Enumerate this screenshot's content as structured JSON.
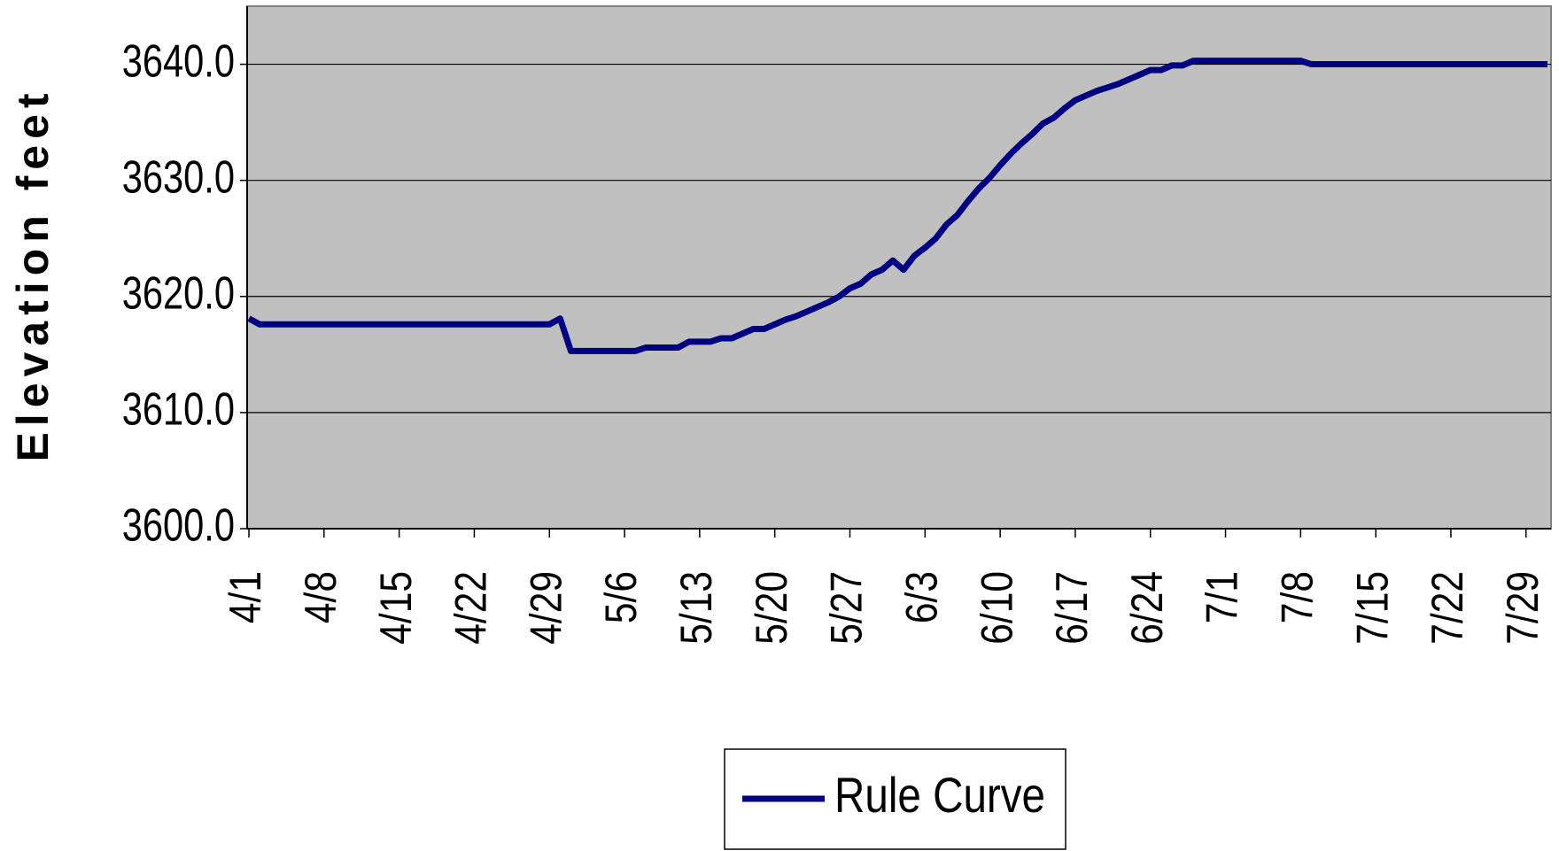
{
  "chart_data": {
    "type": "line",
    "y_label": "Elevation feet",
    "categories": [
      "4/1",
      null,
      null,
      null,
      null,
      null,
      null,
      "4/8",
      null,
      null,
      null,
      null,
      null,
      null,
      "4/15",
      null,
      null,
      null,
      null,
      null,
      null,
      "4/22",
      null,
      null,
      null,
      null,
      null,
      null,
      "4/29",
      null,
      null,
      null,
      null,
      null,
      null,
      "5/6",
      null,
      null,
      null,
      null,
      null,
      null,
      "5/13",
      null,
      null,
      null,
      null,
      null,
      null,
      "5/20",
      null,
      null,
      null,
      null,
      null,
      null,
      "5/27",
      null,
      null,
      null,
      null,
      null,
      null,
      "6/3",
      null,
      null,
      null,
      null,
      null,
      null,
      "6/10",
      null,
      null,
      null,
      null,
      null,
      null,
      "6/17",
      null,
      null,
      null,
      null,
      null,
      null,
      "6/24",
      null,
      null,
      null,
      null,
      null,
      null,
      "7/1",
      null,
      null,
      null,
      null,
      null,
      null,
      "7/8",
      null,
      null,
      null,
      null,
      null,
      null,
      "7/15",
      null,
      null,
      null,
      null,
      null,
      null,
      "7/22",
      null,
      null,
      null,
      null,
      null,
      null,
      "7/29",
      null,
      null
    ],
    "series": [
      {
        "name": "Rule Curve",
        "color": "#000080",
        "values": [
          3618.1,
          3617.6,
          3617.6,
          3617.6,
          3617.6,
          3617.6,
          3617.6,
          3617.6,
          3617.6,
          3617.6,
          3617.6,
          3617.6,
          3617.6,
          3617.6,
          3617.6,
          3617.6,
          3617.6,
          3617.6,
          3617.6,
          3617.6,
          3617.6,
          3617.6,
          3617.6,
          3617.6,
          3617.6,
          3617.6,
          3617.6,
          3617.6,
          3617.6,
          3618.1,
          3615.3,
          3615.3,
          3615.3,
          3615.3,
          3615.3,
          3615.3,
          3615.3,
          3615.6,
          3615.6,
          3615.6,
          3615.6,
          3616.1,
          3616.1,
          3616.1,
          3616.4,
          3616.4,
          3616.8,
          3617.2,
          3617.2,
          3617.6,
          3618.0,
          3618.3,
          3618.7,
          3619.1,
          3619.5,
          3620.0,
          3620.7,
          3621.1,
          3621.9,
          3622.3,
          3623.1,
          3622.3,
          3623.5,
          3624.2,
          3625.0,
          3626.2,
          3627.0,
          3628.2,
          3629.3,
          3630.2,
          3631.3,
          3632.3,
          3633.2,
          3634.0,
          3634.9,
          3635.4,
          3636.2,
          3636.9,
          3637.3,
          3637.7,
          3638.0,
          3638.3,
          3638.7,
          3639.1,
          3639.5,
          3639.5,
          3639.9,
          3639.9,
          3640.3,
          3640.3,
          3640.3,
          3640.3,
          3640.3,
          3640.3,
          3640.3,
          3640.3,
          3640.3,
          3640.3,
          3640.3,
          3640.0,
          3640.0,
          3640.0,
          3640.0,
          3640.0,
          3640.0,
          3640.0,
          3640.0,
          3640.0,
          3640.0,
          3640.0,
          3640.0,
          3640.0,
          3640.0,
          3640.0,
          3640.0,
          3640.0,
          3640.0,
          3640.0,
          3640.0,
          3640.0,
          3640.0,
          3640.0
        ]
      }
    ],
    "ylim": [
      3600,
      3645
    ],
    "yticks": [
      {
        "value": 3600,
        "label": "3600.0"
      },
      {
        "value": 3610,
        "label": "3610.0"
      },
      {
        "value": 3620,
        "label": "3620.0"
      },
      {
        "value": 3630,
        "label": "3630.0"
      },
      {
        "value": 3640,
        "label": "3640.0"
      }
    ],
    "grid": true,
    "legend": "bottom"
  }
}
